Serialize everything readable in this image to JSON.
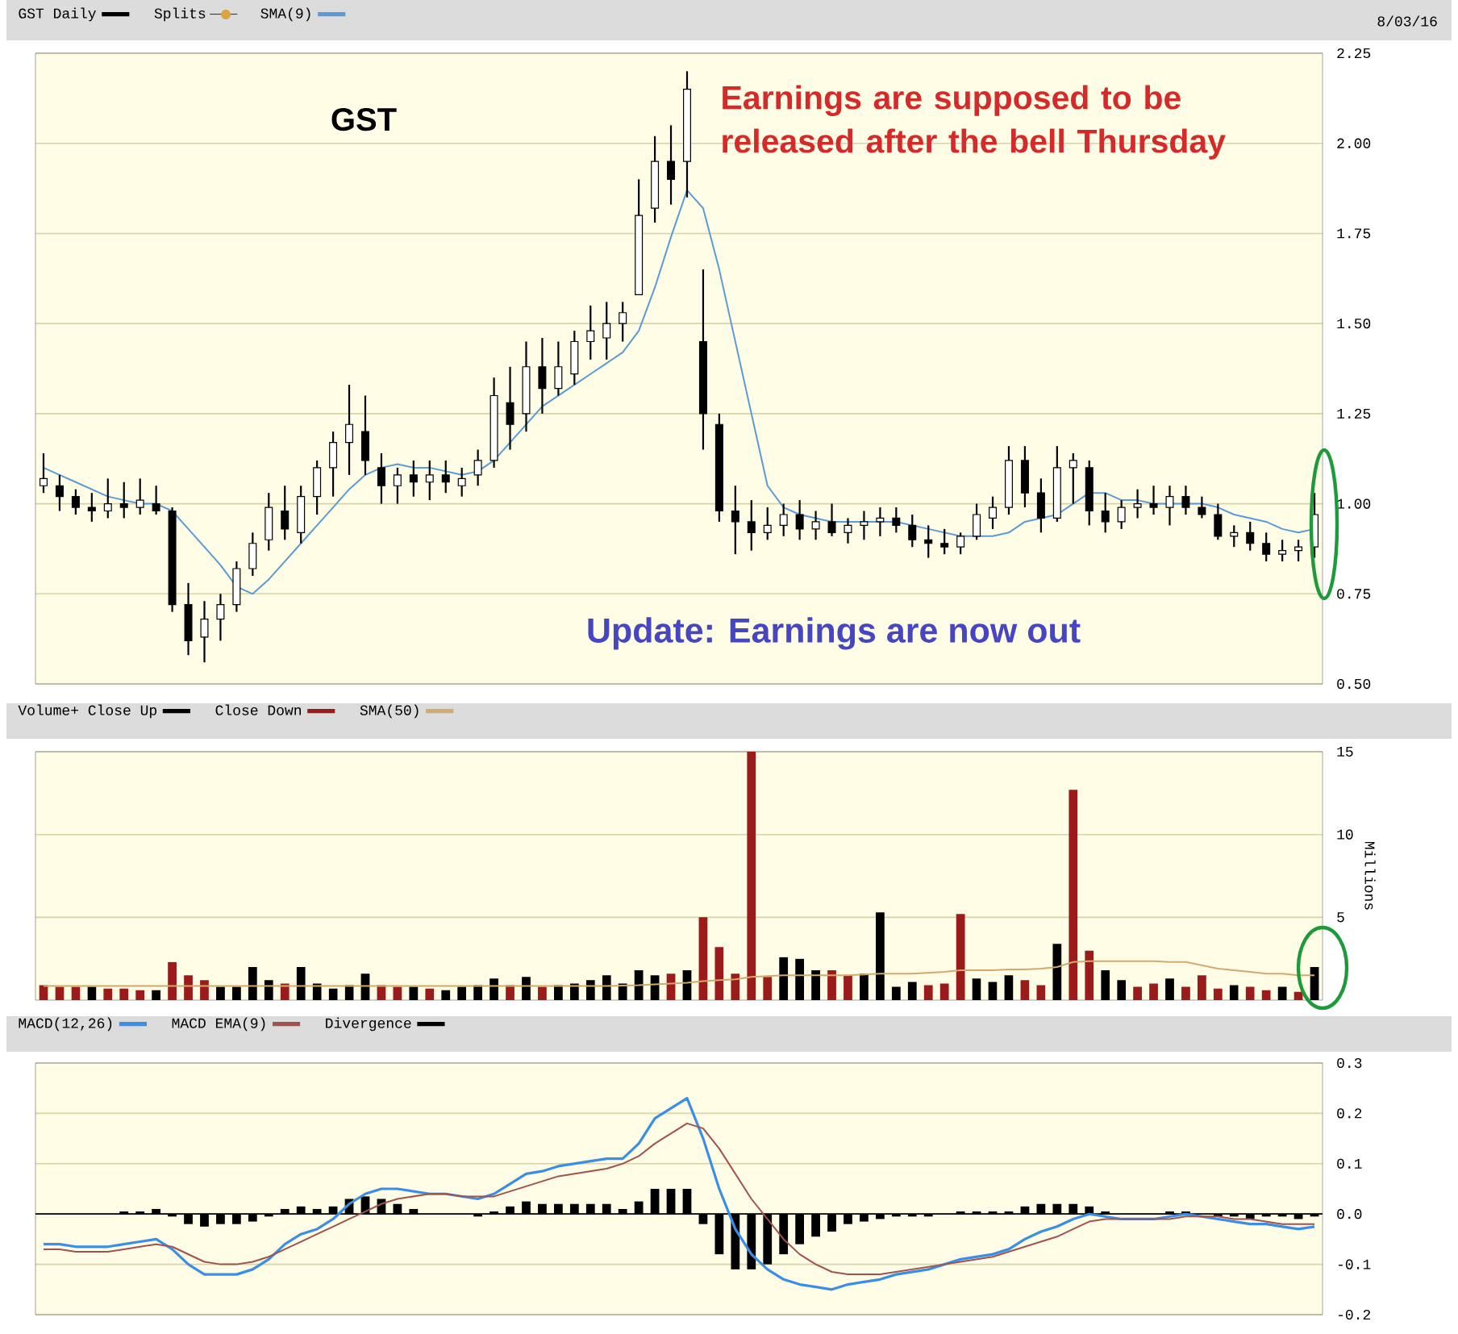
{
  "chart_data": [
    {
      "type": "candlestick",
      "categories": [
        null,
        null,
        null,
        null,
        null,
        null,
        null,
        null,
        null,
        null,
        null,
        null,
        null,
        null,
        null,
        null,
        null,
        null,
        null,
        null,
        null,
        null,
        null,
        null,
        null,
        null,
        null,
        null,
        null,
        null,
        null,
        null,
        null,
        null,
        null,
        null,
        null,
        null,
        null,
        null,
        null,
        null,
        null,
        null,
        null,
        null,
        null,
        null,
        null,
        null,
        null,
        null,
        null,
        null,
        null,
        null,
        null,
        null,
        null,
        null,
        null,
        null,
        null,
        null,
        null,
        null,
        null,
        null,
        null,
        null,
        null,
        null,
        null,
        null,
        null,
        null,
        null,
        null,
        null,
        null
      ],
      "series": [
        {
          "name": "GST Daily",
          "color": "#000000",
          "type": "candlestick",
          "ohlc": [
            [
              1.05,
              1.14,
              1.03,
              1.07
            ],
            [
              1.05,
              1.08,
              0.98,
              1.02
            ],
            [
              1.02,
              1.04,
              0.97,
              0.99
            ],
            [
              0.99,
              1.03,
              0.95,
              0.98
            ],
            [
              0.98,
              1.07,
              0.96,
              1.0
            ],
            [
              1.0,
              1.06,
              0.96,
              0.99
            ],
            [
              0.99,
              1.07,
              0.97,
              1.01
            ],
            [
              1.0,
              1.05,
              0.97,
              0.98
            ],
            [
              0.98,
              0.99,
              0.7,
              0.72
            ],
            [
              0.72,
              0.78,
              0.58,
              0.62
            ],
            [
              0.63,
              0.73,
              0.56,
              0.68
            ],
            [
              0.68,
              0.75,
              0.62,
              0.72
            ],
            [
              0.72,
              0.84,
              0.7,
              0.82
            ],
            [
              0.82,
              0.92,
              0.8,
              0.89
            ],
            [
              0.9,
              1.03,
              0.87,
              0.99
            ],
            [
              0.98,
              1.05,
              0.9,
              0.93
            ],
            [
              0.92,
              1.05,
              0.89,
              1.02
            ],
            [
              1.02,
              1.12,
              0.97,
              1.1
            ],
            [
              1.1,
              1.2,
              1.02,
              1.17
            ],
            [
              1.17,
              1.33,
              1.08,
              1.22
            ],
            [
              1.2,
              1.3,
              1.08,
              1.12
            ],
            [
              1.1,
              1.14,
              1.0,
              1.05
            ],
            [
              1.05,
              1.1,
              1.0,
              1.08
            ],
            [
              1.08,
              1.12,
              1.02,
              1.06
            ],
            [
              1.06,
              1.12,
              1.01,
              1.08
            ],
            [
              1.08,
              1.12,
              1.03,
              1.06
            ],
            [
              1.05,
              1.1,
              1.02,
              1.07
            ],
            [
              1.08,
              1.15,
              1.05,
              1.12
            ],
            [
              1.12,
              1.35,
              1.1,
              1.3
            ],
            [
              1.28,
              1.38,
              1.15,
              1.22
            ],
            [
              1.25,
              1.45,
              1.2,
              1.38
            ],
            [
              1.38,
              1.46,
              1.25,
              1.32
            ],
            [
              1.32,
              1.45,
              1.3,
              1.38
            ],
            [
              1.36,
              1.48,
              1.33,
              1.45
            ],
            [
              1.45,
              1.55,
              1.4,
              1.48
            ],
            [
              1.46,
              1.56,
              1.4,
              1.5
            ],
            [
              1.5,
              1.56,
              1.45,
              1.53
            ],
            [
              1.58,
              1.9,
              1.58,
              1.8
            ],
            [
              1.82,
              2.02,
              1.78,
              1.95
            ],
            [
              1.95,
              2.05,
              1.83,
              1.9
            ],
            [
              1.95,
              2.2,
              1.85,
              2.15
            ],
            [
              1.45,
              1.65,
              1.15,
              1.25
            ],
            [
              1.22,
              1.25,
              0.95,
              0.98
            ],
            [
              0.98,
              1.05,
              0.86,
              0.95
            ],
            [
              0.95,
              1.01,
              0.87,
              0.92
            ],
            [
              0.92,
              0.99,
              0.9,
              0.94
            ],
            [
              0.94,
              1.0,
              0.91,
              0.97
            ],
            [
              0.97,
              1.01,
              0.9,
              0.93
            ],
            [
              0.93,
              0.98,
              0.9,
              0.95
            ],
            [
              0.95,
              1.0,
              0.91,
              0.92
            ],
            [
              0.92,
              0.96,
              0.89,
              0.94
            ],
            [
              0.94,
              0.98,
              0.9,
              0.95
            ],
            [
              0.95,
              0.99,
              0.91,
              0.96
            ],
            [
              0.96,
              0.99,
              0.92,
              0.94
            ],
            [
              0.94,
              0.97,
              0.88,
              0.9
            ],
            [
              0.9,
              0.94,
              0.85,
              0.89
            ],
            [
              0.89,
              0.93,
              0.86,
              0.88
            ],
            [
              0.88,
              0.92,
              0.86,
              0.91
            ],
            [
              0.91,
              1.0,
              0.9,
              0.97
            ],
            [
              0.96,
              1.02,
              0.93,
              0.99
            ],
            [
              0.99,
              1.16,
              0.97,
              1.12
            ],
            [
              1.12,
              1.16,
              0.99,
              1.03
            ],
            [
              1.03,
              1.07,
              0.92,
              0.96
            ],
            [
              0.96,
              1.16,
              0.95,
              1.1
            ],
            [
              1.1,
              1.14,
              1.0,
              1.12
            ],
            [
              1.1,
              1.12,
              0.94,
              0.98
            ],
            [
              0.98,
              1.03,
              0.92,
              0.95
            ],
            [
              0.95,
              1.01,
              0.93,
              0.99
            ],
            [
              0.99,
              1.04,
              0.96,
              1.0
            ],
            [
              1.0,
              1.05,
              0.97,
              0.99
            ],
            [
              0.99,
              1.05,
              0.94,
              1.02
            ],
            [
              1.02,
              1.05,
              0.97,
              0.99
            ],
            [
              0.99,
              1.02,
              0.96,
              0.97
            ],
            [
              0.97,
              1.0,
              0.9,
              0.91
            ],
            [
              0.91,
              0.94,
              0.88,
              0.92
            ],
            [
              0.92,
              0.95,
              0.87,
              0.89
            ],
            [
              0.89,
              0.92,
              0.84,
              0.86
            ],
            [
              0.86,
              0.9,
              0.84,
              0.87
            ],
            [
              0.87,
              0.9,
              0.84,
              0.88
            ],
            [
              0.88,
              1.03,
              0.85,
              0.97
            ]
          ]
        },
        {
          "name": "SMA(9)",
          "color": "#5b9bd5",
          "type": "line",
          "values": [
            1.1,
            1.08,
            1.06,
            1.04,
            1.02,
            1.01,
            1.0,
            1.0,
            0.98,
            0.93,
            0.88,
            0.83,
            0.77,
            0.75,
            0.79,
            0.84,
            0.89,
            0.94,
            0.99,
            1.04,
            1.08,
            1.1,
            1.11,
            1.1,
            1.1,
            1.09,
            1.08,
            1.09,
            1.12,
            1.17,
            1.22,
            1.27,
            1.3,
            1.33,
            1.36,
            1.39,
            1.42,
            1.48,
            1.6,
            1.74,
            1.87,
            1.82,
            1.65,
            1.45,
            1.25,
            1.05,
            0.99,
            0.97,
            0.96,
            0.95,
            0.95,
            0.95,
            0.95,
            0.95,
            0.94,
            0.93,
            0.92,
            0.91,
            0.91,
            0.91,
            0.92,
            0.95,
            0.96,
            0.97,
            1.0,
            1.03,
            1.03,
            1.01,
            1.01,
            1.0,
            1.0,
            1.0,
            1.0,
            0.99,
            0.97,
            0.96,
            0.95,
            0.93,
            0.92,
            0.93
          ]
        }
      ],
      "ylim": [
        0.5,
        2.25
      ],
      "yticks": [
        {
          "value": 0.5,
          "label": "0.50"
        },
        {
          "value": 0.75,
          "label": "0.75"
        },
        {
          "value": 1.0,
          "label": "1.00"
        },
        {
          "value": 1.25,
          "label": "1.25"
        },
        {
          "value": 1.5,
          "label": "1.50"
        },
        {
          "value": 1.75,
          "label": "1.75"
        },
        {
          "value": 2.0,
          "label": "2.00"
        },
        {
          "value": 2.25,
          "label": "2.25"
        }
      ],
      "grid": "y",
      "legend": "top left",
      "tick_labels": "y",
      "annotations": [
        "Splits",
        "8/03/16",
        "GST",
        "Earnings are supposed to be released after the bell Thursday",
        "Update: Earnings are now out"
      ]
    },
    {
      "type": "bar",
      "categories": [
        null,
        null,
        null,
        null,
        null,
        null,
        null,
        null,
        null,
        null,
        null,
        null,
        null,
        null,
        null,
        null,
        null,
        null,
        null,
        null,
        null,
        null,
        null,
        null,
        null,
        null,
        null,
        null,
        null,
        null,
        null,
        null,
        null,
        null,
        null,
        null,
        null,
        null,
        null,
        null,
        null,
        null,
        null,
        null,
        null,
        null,
        null,
        null,
        null,
        null,
        null,
        null,
        null,
        null,
        null,
        null,
        null,
        null,
        null,
        null,
        null,
        null,
        null,
        null,
        null,
        null,
        null,
        null,
        null,
        null,
        null,
        null,
        null,
        null,
        null,
        null,
        null,
        null,
        null,
        null
      ],
      "series": [
        {
          "name": "Volume+ Close Up",
          "color": "#000000",
          "values": [
            null,
            null,
            null,
            0.8,
            null,
            null,
            null,
            0.6,
            null,
            null,
            null,
            0.8,
            0.8,
            2.0,
            1.2,
            null,
            2.0,
            1.0,
            0.7,
            0.9,
            1.6,
            null,
            null,
            0.8,
            null,
            0.6,
            0.8,
            0.9,
            1.3,
            null,
            1.4,
            null,
            0.9,
            1.0,
            1.2,
            1.5,
            1.0,
            1.8,
            1.5,
            null,
            1.8,
            null,
            null,
            null,
            null,
            null,
            2.6,
            2.5,
            1.8,
            null,
            null,
            1.6,
            5.3,
            0.8,
            1.1,
            null,
            null,
            null,
            1.3,
            1.1,
            1.5,
            null,
            null,
            3.4,
            null,
            null,
            1.8,
            1.2,
            null,
            null,
            1.3,
            null,
            null,
            null,
            0.9,
            null,
            null,
            0.8,
            null,
            2.0
          ]
        },
        {
          "name": "Close Down",
          "color": "#9b1b1b",
          "values": [
            0.9,
            0.8,
            0.8,
            null,
            0.7,
            0.7,
            0.6,
            null,
            2.3,
            1.5,
            1.2,
            null,
            null,
            null,
            null,
            1.0,
            null,
            null,
            null,
            null,
            null,
            0.9,
            0.8,
            null,
            0.7,
            null,
            null,
            null,
            null,
            0.9,
            null,
            0.8,
            null,
            null,
            null,
            null,
            null,
            null,
            null,
            1.6,
            null,
            5.0,
            3.2,
            1.6,
            15.0,
            1.4,
            null,
            null,
            null,
            1.8,
            1.5,
            null,
            null,
            null,
            null,
            0.9,
            1.0,
            5.2,
            null,
            null,
            null,
            1.2,
            0.9,
            null,
            12.7,
            3.0,
            null,
            null,
            0.8,
            1.0,
            null,
            0.8,
            1.5,
            0.7,
            null,
            0.8,
            0.6,
            null,
            0.5,
            null
          ]
        },
        {
          "name": "SMA(50)",
          "color": "#d2aa6d",
          "type": "line",
          "values": [
            0.85,
            0.85,
            0.85,
            0.85,
            0.85,
            0.85,
            0.85,
            0.85,
            0.85,
            0.85,
            0.85,
            0.85,
            0.85,
            0.85,
            0.85,
            0.85,
            0.85,
            0.85,
            0.85,
            0.85,
            0.85,
            0.85,
            0.85,
            0.85,
            0.85,
            0.85,
            0.85,
            0.85,
            0.85,
            0.85,
            0.85,
            0.85,
            0.85,
            0.85,
            0.85,
            0.85,
            0.88,
            0.9,
            0.95,
            1.0,
            1.05,
            1.15,
            1.2,
            1.25,
            1.4,
            1.45,
            1.5,
            1.5,
            1.5,
            1.5,
            1.5,
            1.55,
            1.6,
            1.6,
            1.6,
            1.65,
            1.7,
            1.8,
            1.8,
            1.8,
            1.85,
            1.85,
            1.9,
            2.0,
            2.3,
            2.35,
            2.35,
            2.35,
            2.35,
            2.35,
            2.3,
            2.3,
            2.1,
            1.9,
            1.8,
            1.7,
            1.6,
            1.6,
            1.5,
            1.5
          ]
        }
      ],
      "ylabel": "Millions",
      "ylim": [
        0,
        15
      ],
      "yticks": [
        5,
        10,
        15
      ],
      "grid": "y",
      "legend": "top left",
      "tick_labels": "y"
    },
    {
      "type": "line",
      "categories": [
        null,
        null,
        null,
        null,
        null,
        null,
        null,
        null,
        null,
        null,
        null,
        null,
        null,
        null,
        null,
        null,
        null,
        null,
        null,
        null,
        null,
        null,
        null,
        null,
        null,
        null,
        null,
        null,
        null,
        null,
        null,
        null,
        null,
        null,
        null,
        null,
        null,
        null,
        null,
        null,
        null,
        null,
        null,
        null,
        null,
        null,
        null,
        null,
        null,
        null,
        null,
        null,
        null,
        null,
        null,
        null,
        null,
        null,
        null,
        null,
        null,
        null,
        null,
        null,
        null,
        null,
        null,
        null,
        null,
        null,
        null,
        null,
        null,
        null,
        null,
        null,
        null,
        null,
        null,
        null
      ],
      "series": [
        {
          "name": "MACD(12,26)",
          "color": "#3a8ee6",
          "values": [
            -0.06,
            -0.06,
            -0.065,
            -0.065,
            -0.065,
            -0.06,
            -0.055,
            -0.05,
            -0.07,
            -0.1,
            -0.12,
            -0.12,
            -0.12,
            -0.11,
            -0.09,
            -0.06,
            -0.04,
            -0.03,
            -0.01,
            0.02,
            0.04,
            0.05,
            0.05,
            0.045,
            0.04,
            0.04,
            0.035,
            0.03,
            0.04,
            0.06,
            0.08,
            0.085,
            0.095,
            0.1,
            0.105,
            0.11,
            0.11,
            0.14,
            0.19,
            0.21,
            0.23,
            0.15,
            0.05,
            -0.03,
            -0.08,
            -0.11,
            -0.13,
            -0.14,
            -0.145,
            -0.15,
            -0.14,
            -0.135,
            -0.13,
            -0.12,
            -0.115,
            -0.11,
            -0.1,
            -0.09,
            -0.085,
            -0.08,
            -0.07,
            -0.05,
            -0.035,
            -0.025,
            -0.01,
            0.0,
            -0.005,
            -0.01,
            -0.01,
            -0.01,
            -0.005,
            0.0,
            -0.005,
            -0.01,
            -0.015,
            -0.02,
            -0.02,
            -0.025,
            -0.03,
            -0.025
          ]
        },
        {
          "name": "MACD EMA(9)",
          "color": "#a0524d",
          "values": [
            -0.07,
            -0.07,
            -0.075,
            -0.075,
            -0.075,
            -0.07,
            -0.065,
            -0.06,
            -0.065,
            -0.08,
            -0.095,
            -0.1,
            -0.1,
            -0.095,
            -0.085,
            -0.07,
            -0.055,
            -0.04,
            -0.025,
            -0.01,
            0.005,
            0.02,
            0.03,
            0.035,
            0.04,
            0.04,
            0.035,
            0.035,
            0.035,
            0.045,
            0.055,
            0.065,
            0.075,
            0.08,
            0.085,
            0.09,
            0.1,
            0.115,
            0.14,
            0.16,
            0.18,
            0.17,
            0.13,
            0.08,
            0.03,
            -0.01,
            -0.05,
            -0.08,
            -0.1,
            -0.115,
            -0.12,
            -0.12,
            -0.12,
            -0.115,
            -0.11,
            -0.105,
            -0.1,
            -0.095,
            -0.09,
            -0.085,
            -0.075,
            -0.065,
            -0.055,
            -0.045,
            -0.03,
            -0.015,
            -0.01,
            -0.01,
            -0.01,
            -0.01,
            -0.01,
            -0.005,
            -0.005,
            -0.005,
            -0.01,
            -0.01,
            -0.015,
            -0.02,
            -0.02,
            -0.02
          ]
        },
        {
          "name": "Divergence",
          "color": "#000000",
          "type": "bar",
          "values": [
            0,
            0,
            0,
            0,
            0,
            0.005,
            0.005,
            0.01,
            -0.005,
            -0.02,
            -0.025,
            -0.02,
            -0.02,
            -0.015,
            -0.005,
            0.01,
            0.015,
            0.01,
            0.015,
            0.03,
            0.035,
            0.03,
            0.02,
            0.01,
            0,
            0,
            0,
            -0.005,
            0.005,
            0.015,
            0.025,
            0.02,
            0.02,
            0.02,
            0.02,
            0.02,
            0.01,
            0.025,
            0.05,
            0.05,
            0.05,
            -0.02,
            -0.08,
            -0.11,
            -0.11,
            -0.1,
            -0.08,
            -0.06,
            -0.045,
            -0.035,
            -0.02,
            -0.015,
            -0.01,
            -0.005,
            -0.005,
            -0.005,
            0,
            0.005,
            0.005,
            0.005,
            0.005,
            0.015,
            0.02,
            0.02,
            0.02,
            0.015,
            0.005,
            0,
            0,
            0,
            0.005,
            0.005,
            0,
            -0.005,
            -0.005,
            -0.01,
            -0.005,
            -0.005,
            -0.01,
            -0.005
          ]
        }
      ],
      "ylim": [
        -0.2,
        0.3
      ],
      "yticks": [
        -0.2,
        -0.1,
        {
          "value": 0,
          "label": "0.0"
        },
        0.1,
        0.2,
        0.3
      ],
      "ref_lines": [
        {
          "axis": "y",
          "value": 0,
          "color": "#000000"
        }
      ],
      "grid": "y",
      "legend": "top left",
      "tick_labels": "y"
    }
  ]
}
